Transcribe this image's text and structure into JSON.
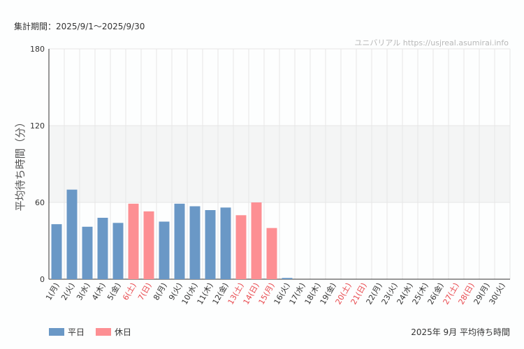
{
  "header": {
    "period": "集計期間：2025/9/1〜2025/9/30",
    "credit": "ユニバリアル https://usjreal.asumirai.info"
  },
  "footer": {
    "title": "2025年 9月 平均待ち時間"
  },
  "colors": {
    "weekday": "#6a98c6",
    "holiday": "#fd8f93",
    "holiday_label": "#e8474c",
    "band": "#f4f5f5",
    "grid": "#e6e6e6"
  },
  "chart_data": {
    "type": "bar",
    "ylabel": "平均待ち時間（分）",
    "xlabel": "",
    "ylim": [
      0,
      180
    ],
    "yticks": [
      0,
      60,
      120,
      180
    ],
    "highlight_band": [
      60,
      120
    ],
    "grid": true,
    "legend": [
      {
        "key": "weekday",
        "label": "平日"
      },
      {
        "key": "holiday",
        "label": "休日"
      }
    ],
    "legend_position": "bottom-left",
    "categories": [
      "1(月)",
      "2(火)",
      "3(水)",
      "4(木)",
      "5(金)",
      "6(土)",
      "7(日)",
      "8(月)",
      "9(火)",
      "10(水)",
      "11(木)",
      "12(金)",
      "13(土)",
      "14(日)",
      "15(月)",
      "16(火)",
      "17(水)",
      "18(木)",
      "19(金)",
      "20(土)",
      "21(日)",
      "22(月)",
      "23(火)",
      "24(水)",
      "25(木)",
      "26(金)",
      "27(土)",
      "28(日)",
      "29(月)",
      "30(火)"
    ],
    "values": [
      43,
      70,
      41,
      48,
      44,
      59,
      53,
      45,
      59,
      57,
      54,
      56,
      50,
      60,
      40,
      1,
      0,
      0,
      0,
      0,
      0,
      0,
      0,
      0,
      0,
      0,
      0,
      0,
      0,
      0
    ],
    "day_type": [
      "weekday",
      "weekday",
      "weekday",
      "weekday",
      "weekday",
      "holiday",
      "holiday",
      "weekday",
      "weekday",
      "weekday",
      "weekday",
      "weekday",
      "holiday",
      "holiday",
      "holiday",
      "weekday",
      "weekday",
      "weekday",
      "weekday",
      "holiday",
      "holiday",
      "weekday",
      "weekday",
      "weekday",
      "weekday",
      "weekday",
      "holiday",
      "holiday",
      "weekday",
      "weekday"
    ]
  }
}
